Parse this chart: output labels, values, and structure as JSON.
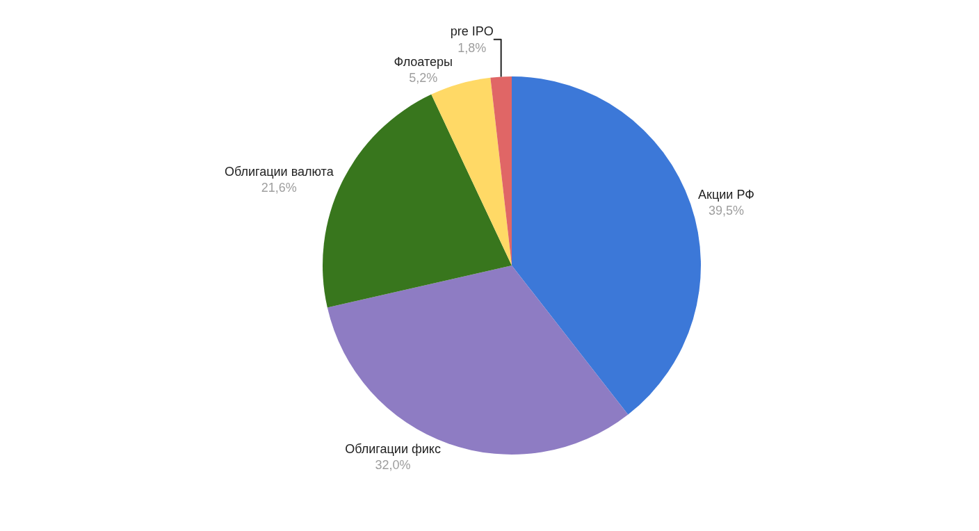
{
  "chart_data": {
    "type": "pie",
    "categories": [
      "Акции РФ",
      "Облигации фикс",
      "Облигации валюта",
      "Флоатеры",
      "pre IPO"
    ],
    "values": [
      39.5,
      32.0,
      21.6,
      5.2,
      1.8
    ],
    "value_labels": [
      "39,5%",
      "32,0%",
      "21,6%",
      "5,2%",
      "1,8%"
    ],
    "colors": [
      "#3c78d8",
      "#8e7cc3",
      "#38761d",
      "#ffd966",
      "#e06666"
    ]
  }
}
